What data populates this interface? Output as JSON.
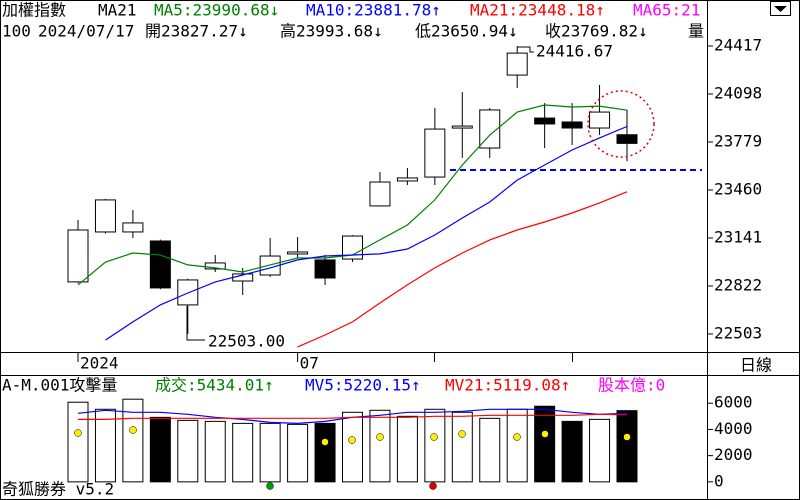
{
  "chart_data": [
    {
      "type": "candlestick",
      "title": "加權指數",
      "subtitle": "MA21",
      "info": [
        "100",
        "2024/07/17",
        "開23827.27↓",
        "高23993.68↓",
        "低23650.94↓",
        "收23769.82↓",
        "量"
      ],
      "categories": [
        "2024",
        null,
        null,
        null,
        null,
        null,
        null,
        null,
        "07",
        null,
        null,
        null,
        null,
        null,
        null,
        null,
        null,
        null,
        null,
        null,
        null
      ],
      "open": [
        22849,
        23181,
        23181,
        23121,
        22696,
        22935,
        22855,
        22895,
        23035,
        22995,
        23001,
        23354,
        23520,
        23546,
        23872,
        23739,
        24224,
        23938,
        23912,
        23872,
        23827.27
      ],
      "high": [
        23261,
        23400,
        23327,
        23130,
        22870,
        23028,
        22942,
        23141,
        23148,
        23028,
        23160,
        23580,
        23606,
        24005,
        24111,
        24005,
        24416.67,
        24038,
        24038,
        24158,
        23993.68
      ],
      "low": [
        22840,
        23170,
        23141,
        22800,
        22503,
        22915,
        22762,
        22882,
        23008,
        22829,
        22981,
        23350,
        23493,
        23493,
        23673,
        23673,
        24138,
        23739,
        23759,
        23826,
        23650.94
      ],
      "close": [
        23194,
        23394,
        23241,
        22809,
        22862,
        22975,
        22902,
        23021,
        23048,
        22875,
        23154,
        23513,
        23540,
        23865,
        23885,
        23992,
        24370,
        23899,
        23872,
        23978,
        23769.82
      ],
      "up_color": "#ffffff",
      "down_color": "#000000",
      "series": [
        {
          "name": "MA5:23990.68↓",
          "color": "#008000",
          "values": [
            22829,
            22981,
            23041,
            23028,
            22962,
            22942,
            22915,
            22962,
            23008,
            23008,
            23028,
            23128,
            23227,
            23394,
            23626,
            23825,
            23978,
            24025,
            24012,
            24018,
            23990.68
          ]
        },
        {
          "name": "MA10:23881.78↑",
          "color": "#0000ff",
          "values": [
            null,
            22463,
            22583,
            22696,
            22775,
            22849,
            22895,
            22942,
            22995,
            23021,
            23028,
            23035,
            23068,
            23161,
            23274,
            23380,
            23526,
            23626,
            23726,
            23806,
            23881.78
          ]
        },
        {
          "name": "MA21:23448.18↑",
          "color": "#ff0000",
          "values": [
            null,
            null,
            null,
            null,
            null,
            null,
            null,
            null,
            22417,
            22496,
            22583,
            22709,
            22829,
            22942,
            23041,
            23128,
            23194,
            23247,
            23307,
            23374,
            23448.18
          ]
        },
        {
          "name": "MA65:21",
          "color": "#ff00ff",
          "values": [
            null,
            null,
            null,
            null,
            null,
            null,
            null,
            null,
            null,
            null,
            null,
            null,
            null,
            null,
            null,
            null,
            null,
            null,
            null,
            null,
            null
          ]
        }
      ],
      "annotations": [
        "24416.67",
        "22503.00"
      ],
      "reference_line": 23593,
      "reference_color": "#0000ff",
      "period": "日線",
      "ylim": [
        22383,
        24723
      ],
      "yticks": [
        22503,
        22822,
        23141,
        23460,
        23779,
        24098,
        24417
      ]
    },
    {
      "type": "bar",
      "title": "A-M.001攻擊量",
      "series": [
        {
          "name": "成交:5434.01↑",
          "color": "#008000",
          "values": [
            6077,
            5538,
            6308,
            4923,
            4692,
            4615,
            4462,
            4462,
            4385,
            4462,
            5308,
            5461,
            5000,
            5538,
            5308,
            4846,
            5538,
            5769,
            4615,
            4769,
            5434.01
          ]
        },
        {
          "name": "MV5:5220.15↑",
          "color": "#0000ff",
          "values": [
            5231,
            5461,
            5308,
            5308,
            5154,
            4923,
            4769,
            4538,
            4462,
            4615,
            4923,
            5077,
            5308,
            5308,
            5385,
            5538,
            5538,
            5538,
            5308,
            5154,
            5220.15
          ]
        },
        {
          "name": "MV21:5119.08↑",
          "color": "#ff0000",
          "values": [
            4769,
            4769,
            4846,
            4846,
            4846,
            4846,
            4846,
            4846,
            4846,
            4846,
            4923,
            4923,
            4923,
            5000,
            5000,
            5077,
            5077,
            5077,
            5077,
            5154,
            5119.08
          ]
        }
      ],
      "extra_label": "股本億:0",
      "extra_color": "#ff00ff",
      "footer": "奇狐勝券 v5.2",
      "ylim": [
        -1385,
        8154
      ],
      "yticks": [
        0,
        2000,
        4000,
        6000
      ]
    }
  ]
}
